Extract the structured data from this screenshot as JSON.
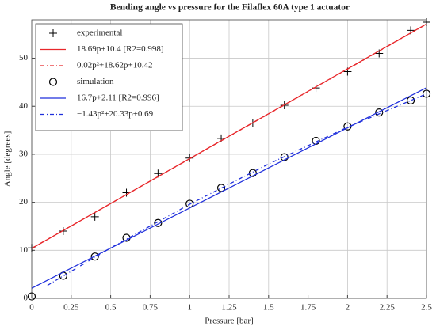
{
  "chart_data": {
    "type": "scatter",
    "title": "Bending angle vs pressure for the Filaflex 60A type 1 actuator",
    "x_label": "Pressure [bar]",
    "y_label": "Angle [degrees]",
    "xlim": [
      0,
      2.5
    ],
    "ylim": [
      0,
      58
    ],
    "xticks": [
      0,
      0.25,
      0.5,
      0.75,
      1,
      1.25,
      1.5,
      1.75,
      2,
      2.25,
      2.5
    ],
    "yticks": [
      0,
      10,
      20,
      30,
      40,
      50
    ],
    "grid": true,
    "legend": "top-left",
    "series": [
      {
        "name": "experimental",
        "color": "#000000",
        "marker": "plus",
        "line": "none",
        "x": [
          0,
          0.2,
          0.4,
          0.6,
          0.8,
          1.0,
          1.2,
          1.4,
          1.6,
          1.8,
          2.0,
          2.2,
          2.4,
          2.5
        ],
        "values": [
          10.5,
          14,
          17,
          22,
          26,
          29.2,
          33.3,
          36.5,
          40.2,
          43.8,
          47.2,
          51,
          55.8,
          57.5
        ]
      },
      {
        "name": "18.69p+10.4 [R2=0.998]",
        "color": "#e8272b",
        "marker": "none",
        "line": "solid",
        "x": [
          0,
          2.5
        ],
        "values": [
          10.4,
          57.13
        ]
      },
      {
        "name": "0.02p²+18.62p+10.42",
        "color": "#e8272b",
        "marker": "none",
        "line": "dashdot",
        "x": [
          0,
          0.5,
          1,
          1.5,
          2,
          2.5
        ],
        "values": [
          10.42,
          19.74,
          29.06,
          38.4,
          47.74,
          57.1
        ]
      },
      {
        "name": "simulation",
        "color": "#000000",
        "marker": "circle",
        "line": "none",
        "x": [
          0,
          0.2,
          0.4,
          0.6,
          0.8,
          1.0,
          1.2,
          1.4,
          1.6,
          1.8,
          2.0,
          2.2,
          2.4,
          2.5
        ],
        "values": [
          0.4,
          4.7,
          8.7,
          12.6,
          15.7,
          19.7,
          23,
          26.1,
          29.4,
          32.8,
          35.8,
          38.7,
          41.2,
          42.6
        ]
      },
      {
        "name": "16.7p+2.11 [R2=0.996]",
        "color": "#1f2fdc",
        "marker": "none",
        "line": "solid",
        "x": [
          0,
          2.5
        ],
        "values": [
          2.11,
          43.86
        ]
      },
      {
        "name": "−1.43p²+20.33p+0.69",
        "color": "#1f2fdc",
        "marker": "none",
        "line": "dashdot",
        "x": [
          0.1,
          0.5,
          1,
          1.5,
          2,
          2.5
        ],
        "values": [
          2.71,
          10.5,
          19.59,
          27.97,
          35.63,
          42.58
        ]
      }
    ]
  }
}
